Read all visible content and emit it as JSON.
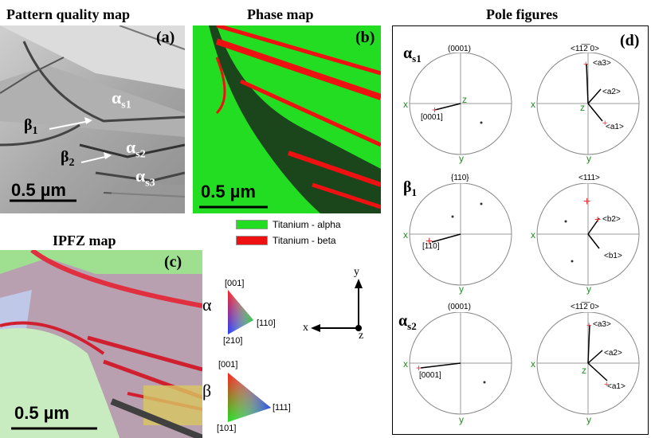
{
  "titles": {
    "pattern": "Pattern quality map",
    "phase": "Phase map",
    "pole": "Pole figures",
    "ipfz": "IPFZ map"
  },
  "panel_letters": {
    "a": "(a)",
    "b": "(b)",
    "c": "(c)",
    "d": "(d)"
  },
  "panel_a": {
    "alpha_s1": "α",
    "alpha_s1_sub": "s1",
    "beta1": "β",
    "beta1_sub": "1",
    "beta2": "β",
    "beta2_sub": "2",
    "alpha_s2": "α",
    "alpha_s2_sub": "s2",
    "alpha_s3": "α",
    "alpha_s3_sub": "s3",
    "scale": "0.5 µm"
  },
  "panel_b": {
    "scale": "0.5 µm",
    "legend": [
      {
        "label": "Titanium - alpha",
        "color": "#22dd22"
      },
      {
        "label": "Titanium - beta",
        "color": "#ee1111"
      }
    ]
  },
  "panel_c": {
    "scale": "0.5 µm",
    "alpha_symbol": "α",
    "alpha_tri": {
      "top": "[001]",
      "right": "[110]",
      "bottom": "[210]"
    },
    "beta_symbol": "β",
    "beta_tri": {
      "top": "[001]",
      "right": "[111]",
      "bottom": "[101]"
    },
    "axes": {
      "x": "x",
      "y": "y",
      "z": "z"
    }
  },
  "pole_figures": {
    "rows": [
      {
        "label": "α",
        "label_sub": "s1",
        "left": {
          "header": "(0001)",
          "annot": "[0001]"
        },
        "right": {
          "header": "<11̅2̅ 0>",
          "annots": [
            "<a3>",
            "<a2>",
            "<a1>"
          ]
        }
      },
      {
        "label": "β",
        "label_sub": "1",
        "left": {
          "header": "{110}",
          "annot": "[110]"
        },
        "right": {
          "header": "<111>",
          "annots": [
            "<b2>",
            "<b1>"
          ]
        }
      },
      {
        "label": "α",
        "label_sub": "s2",
        "left": {
          "header": "(0001)",
          "annot": "[0001]"
        },
        "right": {
          "header": "<11̅2̅ 0>",
          "annots": [
            "<a3>",
            "<a2>",
            "<a1>"
          ]
        }
      }
    ],
    "axis": {
      "x": "x",
      "y": "y",
      "z": "z"
    }
  }
}
